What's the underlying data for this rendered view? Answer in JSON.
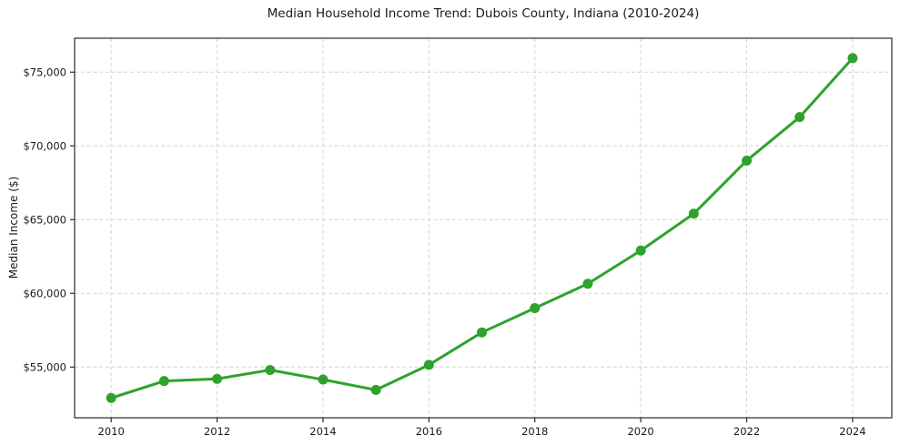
{
  "figure": {
    "background": "#ffffff"
  },
  "chart_data": {
    "type": "line",
    "title": "Median Household Income Trend: Dubois County, Indiana (2010-2024)",
    "xlabel": "",
    "ylabel": "Median Income ($)",
    "x": [
      2010,
      2011,
      2012,
      2013,
      2014,
      2015,
      2016,
      2017,
      2018,
      2019,
      2020,
      2021,
      2022,
      2023,
      2024
    ],
    "y": [
      52900,
      54050,
      54200,
      54800,
      54150,
      53450,
      55150,
      57350,
      59000,
      60650,
      62900,
      65400,
      69000,
      71950,
      75950
    ],
    "series": [
      {
        "name": "Median household income",
        "values": [
          52900,
          54050,
          54200,
          54800,
          54150,
          53450,
          55150,
          57350,
          59000,
          60650,
          62900,
          65400,
          69000,
          71950,
          75950
        ]
      }
    ],
    "x_ticks": [
      2010,
      2012,
      2014,
      2016,
      2018,
      2020,
      2022,
      2024
    ],
    "x_tick_labels": [
      "2010",
      "2012",
      "2014",
      "2016",
      "2018",
      "2020",
      "2022",
      "2024"
    ],
    "y_ticks": [
      55000,
      60000,
      65000,
      70000,
      75000
    ],
    "y_tick_labels": [
      "$55,000",
      "$60,000",
      "$65,000",
      "$70,000",
      "$75,000"
    ],
    "xlim": [
      2009.31,
      2024.74
    ],
    "ylim": [
      51560,
      77300
    ],
    "grid": true,
    "grid_style": "dashed",
    "legend_position": "none",
    "marker": "circle",
    "marker_size": 5.5,
    "line_width": 3
  },
  "colors": {
    "line": "#2da32d",
    "grid": "#d4d4d4",
    "spine": "#2a2a2a",
    "tick": "#2a2a2a",
    "text": "#1a1a1a",
    "background": "#ffffff"
  }
}
